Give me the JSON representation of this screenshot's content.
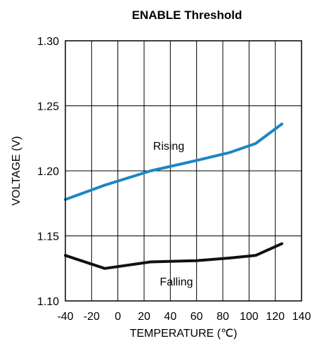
{
  "chart_data": {
    "type": "line",
    "title": "ENABLE Threshold",
    "xlabel": "TEMPERATURE (℃)",
    "ylabel": "VOLTAGE (V)",
    "xlim": [
      -40,
      140
    ],
    "ylim": [
      1.1,
      1.3
    ],
    "x_ticks": [
      "-40",
      "-20",
      "0",
      "20",
      "40",
      "60",
      "80",
      "100",
      "120",
      "140"
    ],
    "y_ticks": [
      "1.10",
      "1.15",
      "1.20",
      "1.25",
      "1.30"
    ],
    "grid": true,
    "series": [
      {
        "label": "Rising",
        "color": "#1a87c4",
        "x": [
          -40,
          -10,
          25,
          60,
          85,
          105,
          125
        ],
        "y": [
          1.178,
          1.189,
          1.2,
          1.208,
          1.214,
          1.221,
          1.236
        ]
      },
      {
        "label": "Falling",
        "color": "#111111",
        "x": [
          -40,
          -10,
          25,
          60,
          85,
          105,
          125
        ],
        "y": [
          1.135,
          1.125,
          1.13,
          1.131,
          1.133,
          1.135,
          1.144
        ]
      }
    ]
  }
}
